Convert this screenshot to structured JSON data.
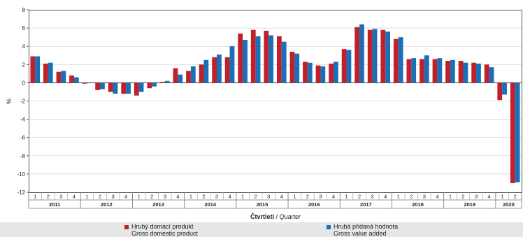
{
  "chart_data": {
    "type": "bar",
    "ylabel": "%",
    "xlabel_cs": "Čtvrtletí",
    "xlabel_sep": " / ",
    "xlabel_en": "Quarter",
    "ylim": [
      -12,
      8
    ],
    "yticks": [
      8,
      6,
      4,
      2,
      0,
      -2,
      -4,
      -6,
      -8,
      -10,
      -12
    ],
    "grid": true,
    "legend": "bottom",
    "years": [
      "2011",
      "2012",
      "2013",
      "2014",
      "2015",
      "2016",
      "2017",
      "2018",
      "2019",
      "2020"
    ],
    "quarters": [
      "1",
      "2",
      "3",
      "4",
      "1",
      "2",
      "3",
      "4",
      "1",
      "2",
      "3",
      "4",
      "1",
      "2",
      "3",
      "4",
      "1",
      "2",
      "3",
      "4",
      "1",
      "2",
      "3",
      "4",
      "1",
      "2",
      "3",
      "4",
      "1",
      "2",
      "3",
      "4",
      "1",
      "2",
      "3",
      "4",
      "1",
      "2"
    ],
    "series": [
      {
        "name": "Hrubý domácí produkt",
        "name_en": "Gross domestic product",
        "color": "#c0202a",
        "values": [
          2.9,
          2.1,
          1.2,
          0.8,
          -0.1,
          -0.8,
          -1.0,
          -1.2,
          -1.4,
          -0.6,
          0.1,
          1.6,
          1.3,
          2.0,
          2.8,
          2.8,
          5.4,
          5.8,
          5.7,
          5.1,
          3.4,
          2.3,
          1.9,
          2.1,
          3.7,
          6.1,
          5.8,
          5.8,
          4.8,
          2.6,
          2.6,
          2.6,
          2.4,
          2.4,
          2.2,
          2.0,
          -1.9,
          -11.0
        ]
      },
      {
        "name": "Hrubá přidaná hodnota",
        "name_en": "Gross value added",
        "color": "#1b6fb6",
        "values": [
          2.9,
          2.2,
          1.3,
          0.6,
          0.0,
          -0.7,
          -1.2,
          -1.2,
          -1.0,
          -0.4,
          0.2,
          0.9,
          1.8,
          2.5,
          3.1,
          4.0,
          4.7,
          5.1,
          5.2,
          4.5,
          3.2,
          2.2,
          1.8,
          2.3,
          3.6,
          6.4,
          5.9,
          5.6,
          5.0,
          2.7,
          3.0,
          2.7,
          2.5,
          2.2,
          2.1,
          1.7,
          -1.3,
          -10.9
        ]
      }
    ]
  }
}
